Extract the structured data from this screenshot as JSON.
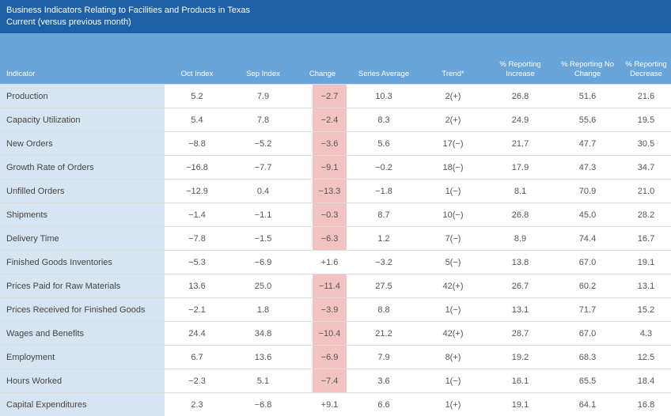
{
  "header": {
    "title": "Business Indicators Relating to Facilities and Products in Texas",
    "subtitle": "Current (versus previous month)"
  },
  "table": {
    "columns": [
      "Indicator",
      "Oct Index",
      "Sep Index",
      "Change",
      "Series Average",
      "Trend*",
      "% Reporting Increase",
      "% Reporting No Change",
      "% Reporting Decrease"
    ],
    "rows": [
      [
        "Production",
        "5.2",
        "7.9",
        "−2.7",
        "10.3",
        "2(+)",
        "26.8",
        "51.6",
        "21.6"
      ],
      [
        "Capacity Utilization",
        "5.4",
        "7.8",
        "−2.4",
        "8.3",
        "2(+)",
        "24.9",
        "55.6",
        "19.5"
      ],
      [
        "New Orders",
        "−8.8",
        "−5.2",
        "−3.6",
        "5.6",
        "17(−)",
        "21.7",
        "47.7",
        "30.5"
      ],
      [
        "Growth Rate of Orders",
        "−16.8",
        "−7.7",
        "−9.1",
        "−0.2",
        "18(−)",
        "17.9",
        "47.3",
        "34.7"
      ],
      [
        "Unfilled Orders",
        "−12.9",
        "0.4",
        "−13.3",
        "−1.8",
        "1(−)",
        "8.1",
        "70.9",
        "21.0"
      ],
      [
        "Shipments",
        "−1.4",
        "−1.1",
        "−0.3",
        "8.7",
        "10(−)",
        "26.8",
        "45.0",
        "28.2"
      ],
      [
        "Delivery Time",
        "−7.8",
        "−1.5",
        "−6.3",
        "1.2",
        "7(−)",
        "8.9",
        "74.4",
        "16.7"
      ],
      [
        "Finished Goods Inventories",
        "−5.3",
        "−6.9",
        "+1.6",
        "−3.2",
        "5(−)",
        "13.8",
        "67.0",
        "19.1"
      ],
      [
        "Prices Paid for Raw Materials",
        "13.6",
        "25.0",
        "−11.4",
        "27.5",
        "42(+)",
        "26.7",
        "60.2",
        "13.1"
      ],
      [
        "Prices Received for Finished Goods",
        "−2.1",
        "1.8",
        "−3.9",
        "8.8",
        "1(−)",
        "13.1",
        "71.7",
        "15.2"
      ],
      [
        "Wages and Benefits",
        "24.4",
        "34.8",
        "−10.4",
        "21.2",
        "42(+)",
        "28.7",
        "67.0",
        "4.3"
      ],
      [
        "Employment",
        "6.7",
        "13.6",
        "−6.9",
        "7.9",
        "8(+)",
        "19.2",
        "68.3",
        "12.5"
      ],
      [
        "Hours Worked",
        "−2.3",
        "5.1",
        "−7.4",
        "3.6",
        "1(−)",
        "16.1",
        "65.5",
        "18.4"
      ],
      [
        "Capital Expenditures",
        "2.3",
        "−6.8",
        "+9.1",
        "6.6",
        "1(+)",
        "19.1",
        "64.1",
        "16.8"
      ]
    ]
  }
}
